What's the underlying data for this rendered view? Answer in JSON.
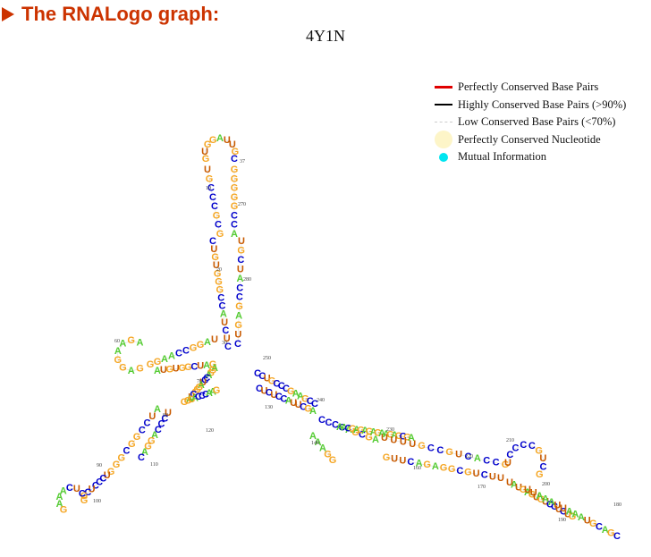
{
  "header": {
    "title": "The RNALogo graph:"
  },
  "plot": {
    "title": "4Y1N"
  },
  "legend": {
    "items": [
      {
        "label": "Perfectly Conserved Base Pairs",
        "icon": "red-line-icon",
        "color": "#e00000"
      },
      {
        "label": "Highly Conserved Base Pairs (>90%)",
        "icon": "black-line-icon",
        "color": "#000000"
      },
      {
        "label": "Low Conserved Base Pairs (<70%)",
        "icon": "dashed-line-icon",
        "color": "#cccccc"
      },
      {
        "label": "Perfectly Conserved Nucleotide",
        "icon": "cream-circle-icon",
        "color": "#fdf5c8"
      },
      {
        "label": "Mutual Information",
        "icon": "cyan-dot-icon",
        "color": "#00e5f0"
      }
    ]
  },
  "colors": {
    "A": "#55cc33",
    "G": "#f5a623",
    "C": "#0000cc",
    "U": "#c85a00"
  },
  "position_labels": [
    "10",
    "20",
    "30",
    "37",
    "60",
    "70",
    "80",
    "90",
    "100",
    "110",
    "120",
    "130",
    "140",
    "160",
    "170",
    "180",
    "190",
    "200",
    "210",
    "220",
    "230",
    "240",
    "250",
    "270",
    "280"
  ],
  "segments": [
    {
      "id": "apical-loop",
      "seq": "GUGGAUUGC"
    },
    {
      "id": "stem-top-left",
      "seq": "UGCCCGCG"
    },
    {
      "id": "stem-top-right",
      "seq": "GGGGGCCA"
    },
    {
      "id": "stem-mid-left",
      "seq": "CUGUGGGCCAUCUC"
    },
    {
      "id": "stem-mid-right",
      "seq": "UGCUACCGAGUC"
    },
    {
      "id": "left-arm-top",
      "seq": "UAGGCCAAGG"
    },
    {
      "id": "left-arm-bottom",
      "seq": "GAUCGGUGUA"
    },
    {
      "id": "left-loop",
      "seq": "AGAAGGAG"
    },
    {
      "id": "junction-lower",
      "seq": "AGGACCUAGGGCUA"
    },
    {
      "id": "lower-left-stem-a",
      "seq": "GGGACCCAAG"
    },
    {
      "id": "lower-left-stem-b",
      "seq": "UCCCAGGAC"
    },
    {
      "id": "lower-left-stem-c",
      "seq": "AUCCGGCGG"
    },
    {
      "id": "lower-left-stem-d",
      "seq": "GUCCCUCG"
    },
    {
      "id": "lower-left-loop",
      "seq": "GCUCAAAG"
    },
    {
      "id": "right-arm-a",
      "seq": "CCUGCCCGAAGCC"
    },
    {
      "id": "right-arm-b",
      "seq": "CUCUCCAUUCGA"
    },
    {
      "id": "right-arm-c",
      "seq": "CCCCAGCGA"
    },
    {
      "id": "right-arm-d",
      "seq": "AACGAGAGAGAAGAGCGA"
    },
    {
      "id": "right-arm-e",
      "seq": "GUUCAGAGGCGUCUU"
    },
    {
      "id": "right-arm-f",
      "seq": "UUUUGCCGUCACCG"
    },
    {
      "id": "right-arm-g",
      "seq": "UAUGAGUGUCCUCUG"
    },
    {
      "id": "right-arm-h",
      "seq": "UUAAAUUAAAUGCAGC"
    },
    {
      "id": "right-loop-a",
      "seq": "UCCCCGUCG"
    },
    {
      "id": "right-loop-b",
      "seq": "AAAGG"
    }
  ]
}
